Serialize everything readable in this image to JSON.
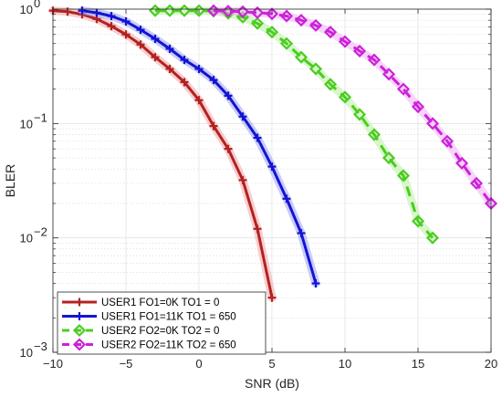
{
  "chart_data": {
    "type": "line",
    "xlabel": "SNR (dB)",
    "ylabel": "BLER",
    "xlim": [
      -10,
      20
    ],
    "ylim": [
      0.001,
      1
    ],
    "y_scale": "log",
    "grid": true,
    "minor_grid": true,
    "legend_position": "bottom-left",
    "x_ticks": [
      {
        "value": -10,
        "label": "−10"
      },
      {
        "value": -5,
        "label": "−5"
      },
      {
        "value": 0,
        "label": "0"
      },
      {
        "value": 5,
        "label": "5"
      },
      {
        "value": 10,
        "label": "10"
      },
      {
        "value": 15,
        "label": "15"
      },
      {
        "value": 20,
        "label": "20"
      }
    ],
    "y_ticks": [
      {
        "value": 0.001,
        "base": "10",
        "exp": "−3"
      },
      {
        "value": 0.01,
        "base": "10",
        "exp": "−2"
      },
      {
        "value": 0.1,
        "base": "10",
        "exp": "−1"
      },
      {
        "value": 1,
        "base": "10",
        "exp": "0"
      }
    ],
    "series": [
      {
        "name": "USER1 FO1=0K TO1 = 0",
        "color": "#b22222",
        "glow": "#f2a6a6",
        "marker": "plus",
        "dash": false,
        "x": [
          -10,
          -9,
          -8,
          -7,
          -6,
          -5,
          -4,
          -3,
          -2,
          -1,
          0,
          1,
          2,
          3,
          4,
          5
        ],
        "y": [
          0.97,
          0.95,
          0.9,
          0.82,
          0.71,
          0.6,
          0.49,
          0.38,
          0.3,
          0.23,
          0.16,
          0.095,
          0.06,
          0.032,
          0.012,
          0.003
        ]
      },
      {
        "name": "USER1 FO1=11K TO1 = 650",
        "color": "#1414d2",
        "glow": "#9aa3f2",
        "marker": "plus",
        "dash": false,
        "x": [
          -8,
          -7,
          -6,
          -5,
          -4,
          -3,
          -2,
          -1,
          0,
          1,
          2,
          3,
          4,
          5,
          6,
          7,
          8
        ],
        "y": [
          0.97,
          0.93,
          0.87,
          0.78,
          0.66,
          0.55,
          0.45,
          0.36,
          0.3,
          0.24,
          0.175,
          0.115,
          0.075,
          0.042,
          0.022,
          0.011,
          0.004
        ]
      },
      {
        "name": "USER2 FO2=0K TO2 = 0",
        "color": "#4ccc22",
        "glow": "#b9f0a1",
        "marker": "diamond",
        "dash": true,
        "x": [
          -3,
          -2,
          -1,
          0,
          1,
          2,
          3,
          4,
          5,
          6,
          7,
          8,
          9,
          10,
          11,
          12,
          13,
          14,
          15,
          16
        ],
        "y": [
          0.97,
          0.97,
          0.97,
          0.97,
          0.96,
          0.92,
          0.85,
          0.75,
          0.63,
          0.5,
          0.38,
          0.3,
          0.22,
          0.17,
          0.12,
          0.08,
          0.05,
          0.035,
          0.014,
          0.01
        ]
      },
      {
        "name": "USER2 FO2=11K TO2 = 650",
        "color": "#cc22d8",
        "glow": "#f1b3f5",
        "marker": "diamond",
        "dash": true,
        "x": [
          1,
          2,
          3,
          4,
          5,
          6,
          7,
          8,
          9,
          10,
          11,
          12,
          13,
          14,
          15,
          16,
          17,
          18,
          19,
          20
        ],
        "y": [
          0.97,
          0.96,
          0.95,
          0.93,
          0.91,
          0.87,
          0.8,
          0.72,
          0.63,
          0.52,
          0.43,
          0.36,
          0.27,
          0.2,
          0.14,
          0.1,
          0.07,
          0.045,
          0.03,
          0.02
        ]
      }
    ]
  }
}
